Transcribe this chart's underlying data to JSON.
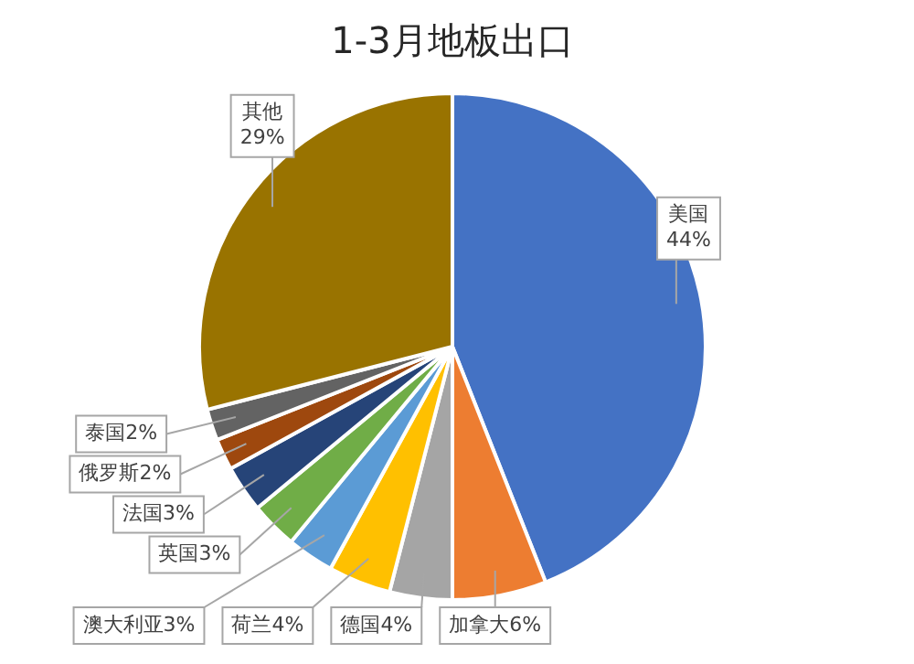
{
  "chart_data": {
    "type": "pie",
    "title": "1-3月地板出口",
    "categories": [
      "美国",
      "加拿大",
      "德国",
      "荷兰",
      "澳大利亚",
      "英国",
      "法国",
      "俄罗斯",
      "泰国",
      "其他"
    ],
    "values": [
      44,
      6,
      4,
      4,
      3,
      3,
      3,
      2,
      2,
      29
    ],
    "value_labels": [
      "44%",
      "6%",
      "4%",
      "4%",
      "3%",
      "3%",
      "3%",
      "2%",
      "2%",
      "29%"
    ],
    "colors": [
      "#4472c4",
      "#ed7d31",
      "#a5a5a5",
      "#ffc000",
      "#5b9bd5",
      "#70ad47",
      "#264478",
      "#9e480e",
      "#636363",
      "#997300"
    ]
  }
}
